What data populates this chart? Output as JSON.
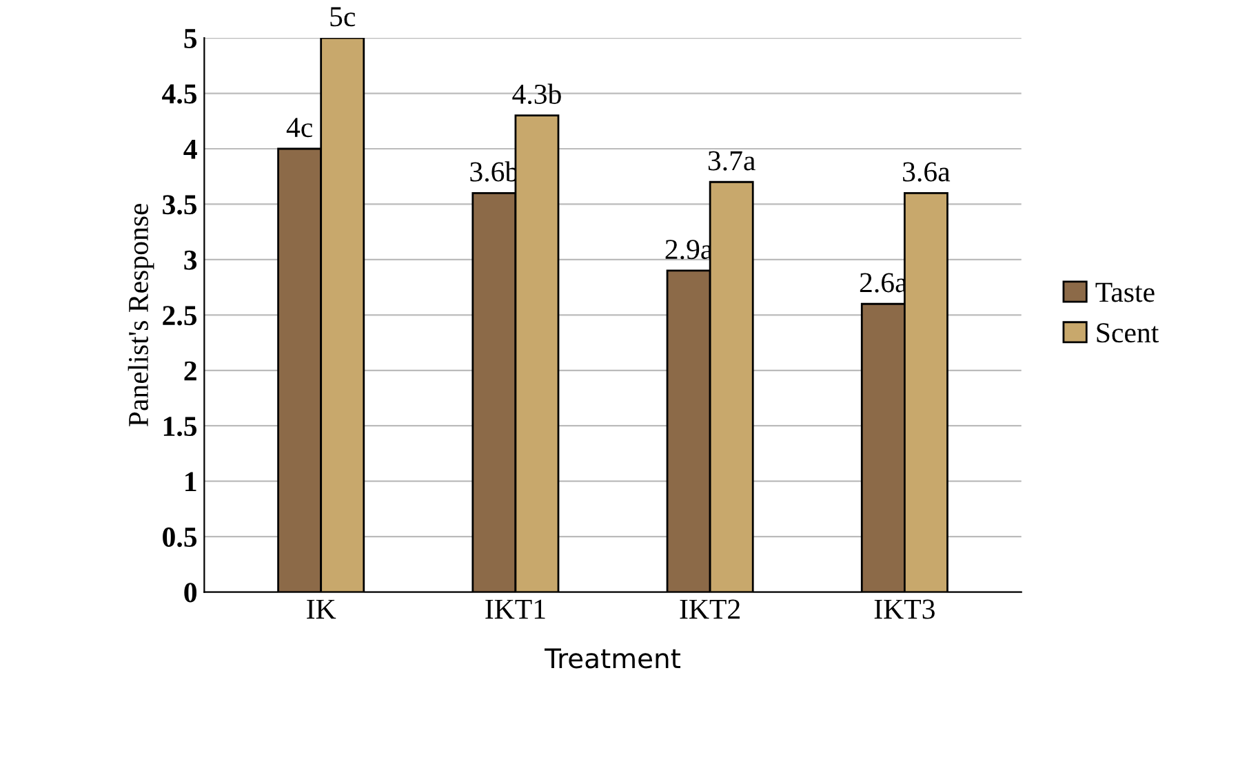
{
  "chart_data": {
    "type": "bar",
    "xlabel": "Treatment",
    "ylabel": "Panelist's Response",
    "categories": [
      "IK",
      "IKT1",
      "IKT2",
      "IKT3"
    ],
    "series": [
      {
        "name": "Taste",
        "color": "#8c6a48",
        "values": [
          4,
          3.6,
          2.9,
          2.6
        ],
        "value_labels": [
          "4c",
          "3.6b",
          "2.9a",
          "2.6a"
        ]
      },
      {
        "name": "Scent",
        "color": "#c8a86c",
        "values": [
          5,
          4.3,
          3.7,
          3.6
        ],
        "value_labels": [
          "5c",
          "4.3b",
          "3.7a",
          "3.6a"
        ]
      }
    ],
    "ylim": [
      0,
      5
    ],
    "yticks": [
      0,
      0.5,
      1,
      1.5,
      2,
      2.5,
      3,
      3.5,
      4,
      4.5,
      5
    ],
    "grid": "y",
    "legend": "right"
  }
}
